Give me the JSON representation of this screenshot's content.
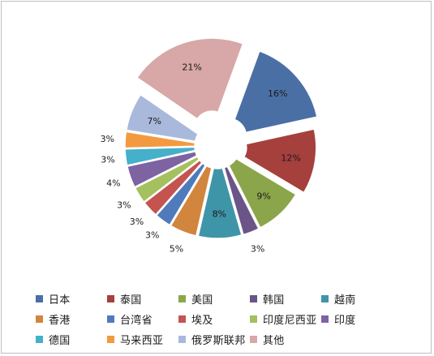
{
  "chart_data": {
    "type": "pie",
    "title": "",
    "slices": [
      {
        "name": "日本",
        "value": 16,
        "label": "16%",
        "color": "#4a6fa5"
      },
      {
        "name": "泰国",
        "value": 12,
        "label": "12%",
        "color": "#a5403d"
      },
      {
        "name": "美国",
        "value": 9,
        "label": "9%",
        "color": "#8ba64a"
      },
      {
        "name": "韩国",
        "value": 3,
        "label": "3%",
        "color": "#6b5487"
      },
      {
        "name": "越南",
        "value": 8,
        "label": "8%",
        "color": "#3f95a8"
      },
      {
        "name": "香港",
        "value": 5,
        "label": "5%",
        "color": "#d2853c"
      },
      {
        "name": "台湾省",
        "value": 3,
        "label": "3%",
        "color": "#4f7bbd"
      },
      {
        "name": "埃及",
        "value": 3,
        "label": "3%",
        "color": "#c35450"
      },
      {
        "name": "印度尼西亚",
        "value": 3,
        "label": "3%",
        "color": "#a5c05e"
      },
      {
        "name": "印度",
        "value": 4,
        "label": "4%",
        "color": "#7e63a3"
      },
      {
        "name": "德国",
        "value": 3,
        "label": "3%",
        "color": "#44b0c9"
      },
      {
        "name": "马来西亚",
        "value": 3,
        "label": "3%",
        "color": "#f39a40"
      },
      {
        "name": "俄罗斯联邦",
        "value": 7,
        "label": "7%",
        "color": "#a9b9dc"
      },
      {
        "name": "其他",
        "value": 21,
        "label": "21%",
        "color": "#d7a8a7"
      }
    ],
    "legend_position": "bottom"
  }
}
